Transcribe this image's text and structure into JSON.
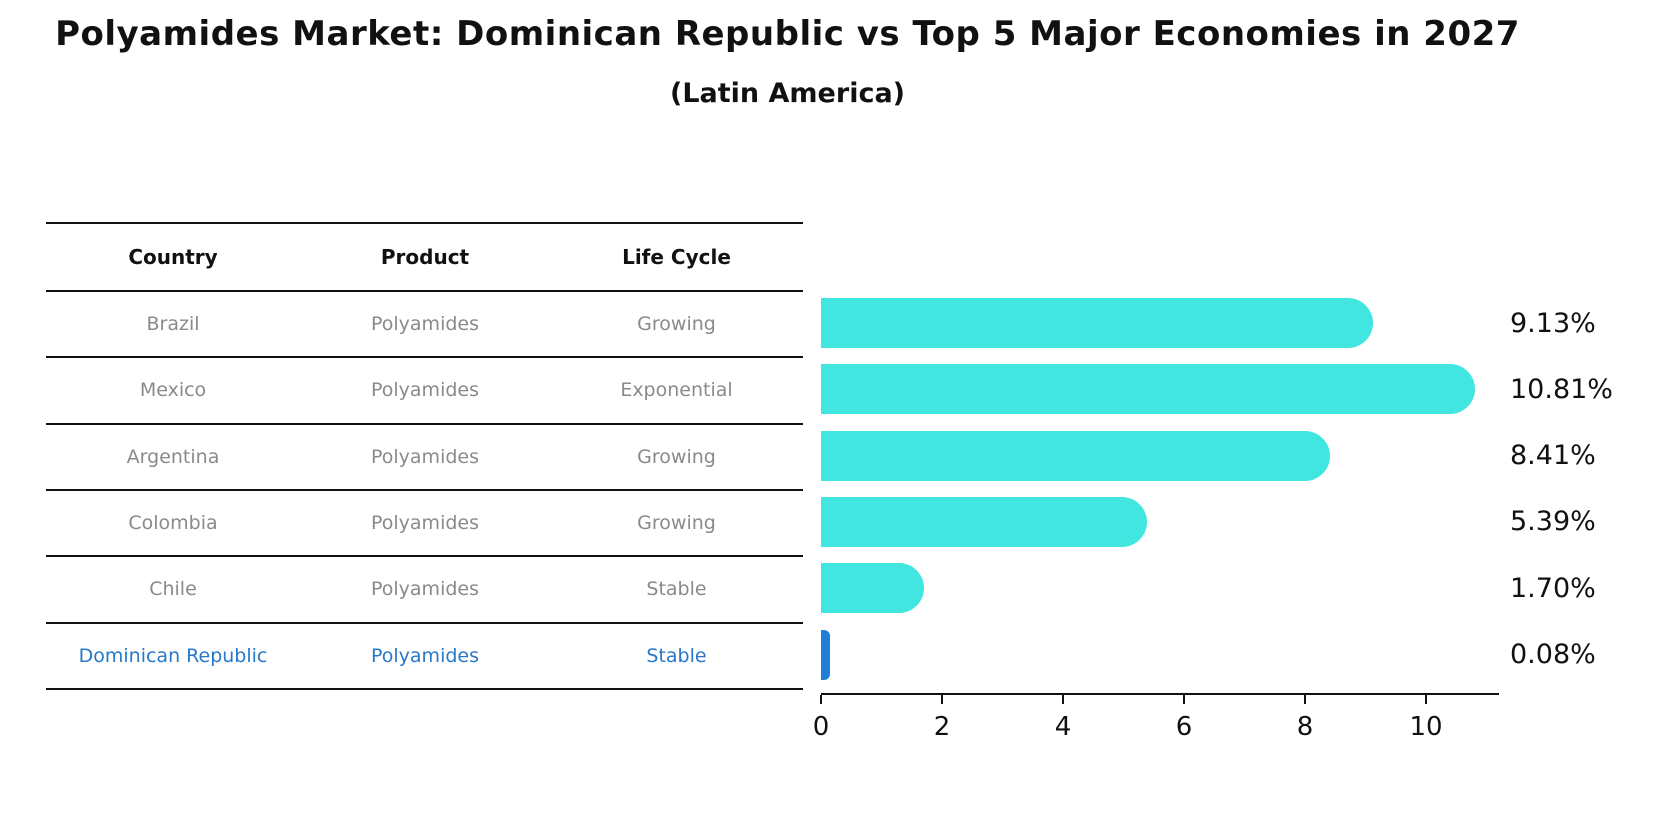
{
  "title": "Polyamides Market: Dominican Republic vs Top 5 Major Economies in 2027",
  "subtitle": "(Latin America)",
  "colors": {
    "bar": "#42e6e0",
    "highlight_bar": "#1f7fd8",
    "highlight_text": "#2878c8",
    "row_text": "#8a8a8a",
    "header_text": "#111111"
  },
  "table": {
    "headers": [
      "Country",
      "Product",
      "Life Cycle"
    ],
    "rows": [
      {
        "country": "Brazil",
        "product": "Polyamides",
        "life_cycle": "Growing",
        "highlight": false
      },
      {
        "country": "Mexico",
        "product": "Polyamides",
        "life_cycle": "Exponential",
        "highlight": false
      },
      {
        "country": "Argentina",
        "product": "Polyamides",
        "life_cycle": "Growing",
        "highlight": false
      },
      {
        "country": "Colombia",
        "product": "Polyamides",
        "life_cycle": "Growing",
        "highlight": false
      },
      {
        "country": "Chile",
        "product": "Polyamides",
        "life_cycle": "Stable",
        "highlight": false
      },
      {
        "country": "Dominican Republic",
        "product": "Polyamides",
        "life_cycle": "Stable",
        "highlight": true
      }
    ]
  },
  "chart_data": {
    "type": "bar",
    "orientation": "horizontal",
    "title": "Polyamides Market: Dominican Republic vs Top 5 Major Economies in 2027 (Latin America)",
    "categories": [
      "Brazil",
      "Mexico",
      "Argentina",
      "Colombia",
      "Chile",
      "Dominican Republic"
    ],
    "values": [
      9.13,
      10.81,
      8.41,
      5.39,
      1.7,
      0.08
    ],
    "value_labels": [
      "9.13%",
      "10.81%",
      "8.41%",
      "5.39%",
      "1.70%",
      "0.08%"
    ],
    "xlabel": "",
    "ylabel": "",
    "xlim": [
      0,
      11.2
    ],
    "xticks": [
      0,
      2,
      4,
      6,
      8,
      10
    ],
    "grid": false,
    "legend": false,
    "highlight_category": "Dominican Republic"
  }
}
